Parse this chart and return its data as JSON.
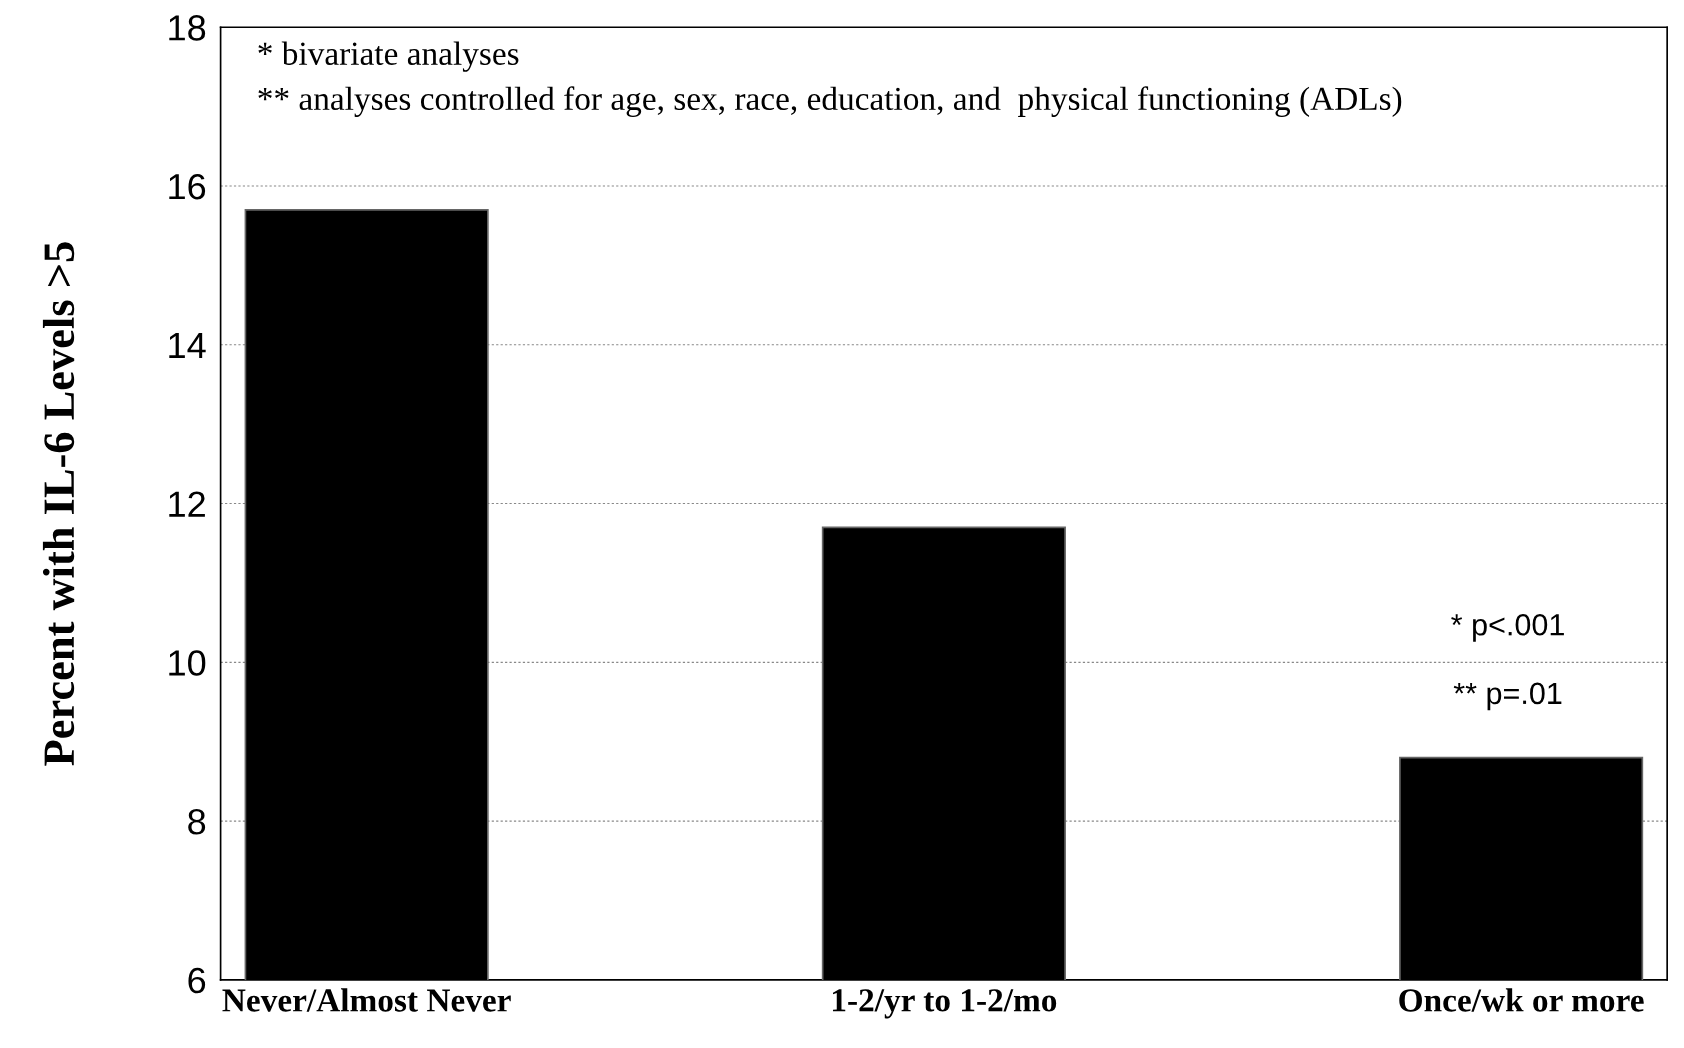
{
  "chart_data": {
    "type": "bar",
    "ylabel": "Percent with IL-6 Levels >5",
    "categories": [
      "Never/Almost Never",
      "1-2/yr to 1-2/mo",
      "Once/wk or more"
    ],
    "values": [
      15.7,
      11.7,
      8.8
    ],
    "color": "#000000",
    "ylim": [
      6,
      18
    ],
    "yticks": [
      6,
      8,
      10,
      12,
      14,
      16,
      18
    ],
    "grid": "y",
    "annotations": [
      "* bivariate analyses",
      "** analyses controlled for age, sex, race, education, and  physical functioning (ADLs)",
      "* p<.001",
      "** p=.01"
    ]
  }
}
